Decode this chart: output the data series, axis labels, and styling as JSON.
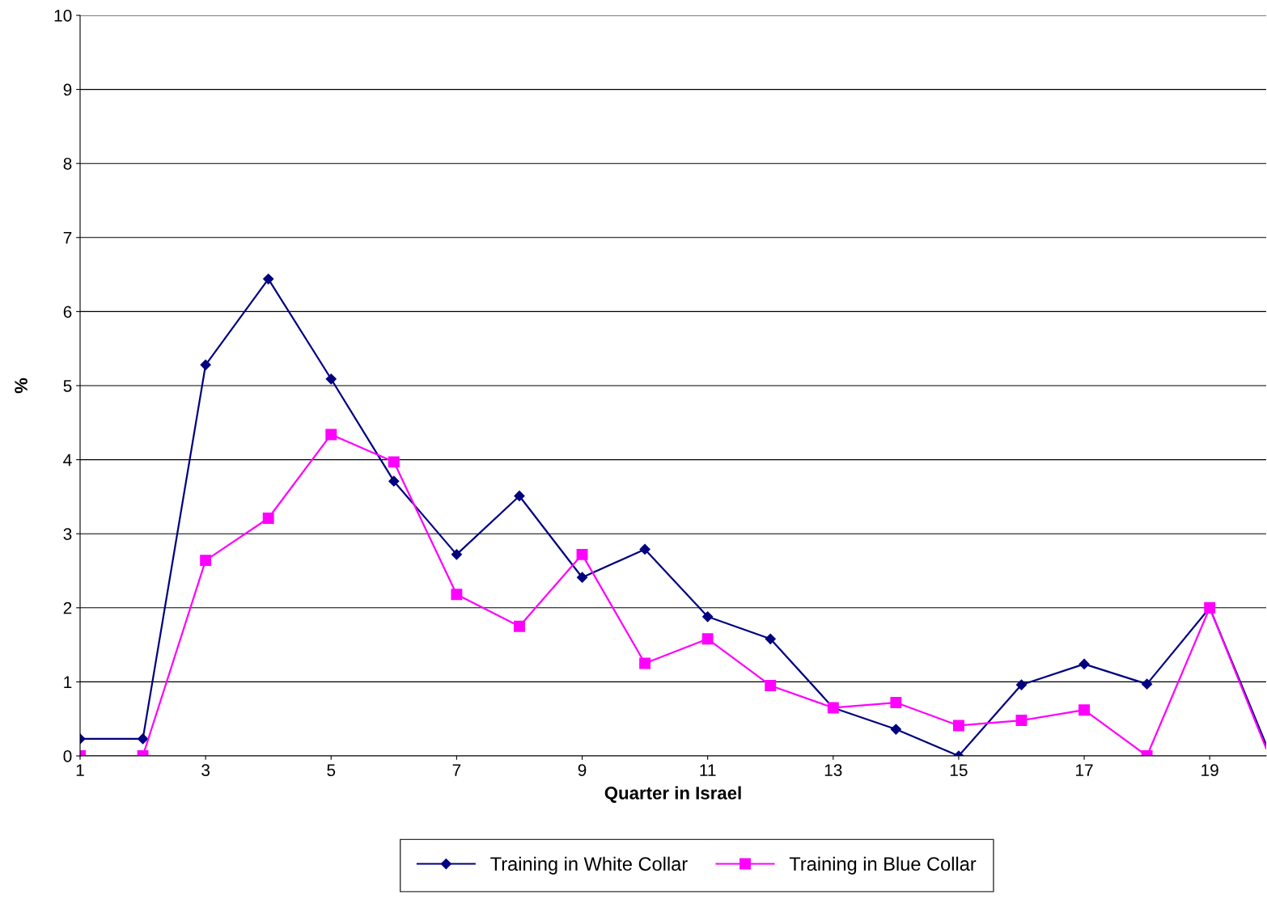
{
  "chart_data": {
    "type": "line",
    "xlabel": "Quarter in Israel",
    "ylabel": "%",
    "xlim": [
      1,
      19.9
    ],
    "xticks": [
      1,
      3,
      5,
      7,
      9,
      11,
      13,
      15,
      17,
      19
    ],
    "ylim": [
      0,
      10
    ],
    "yticks": [
      0,
      1,
      2,
      3,
      4,
      5,
      6,
      7,
      8,
      9,
      10
    ],
    "grid": "y",
    "legend": "bottom",
    "line_style": "solid",
    "series": [
      {
        "name": "Training in White Collar",
        "color": "#000080",
        "marker": "diamond",
        "x": [
          1,
          2,
          3,
          4,
          5,
          6,
          7,
          8,
          9,
          10,
          11,
          12,
          13,
          14,
          15,
          16,
          17,
          18,
          19,
          19.9
        ],
        "values": [
          0.23,
          0.23,
          5.28,
          6.44,
          5.09,
          3.71,
          2.72,
          3.51,
          2.41,
          2.79,
          1.88,
          1.58,
          0.65,
          0.36,
          0.0,
          0.96,
          1.24,
          0.97,
          2.0,
          0.15
        ]
      },
      {
        "name": "Training in Blue Collar",
        "color": "#ff00ff",
        "marker": "square",
        "x": [
          1,
          2,
          3,
          4,
          5,
          6,
          7,
          8,
          9,
          10,
          11,
          12,
          13,
          14,
          15,
          16,
          17,
          18,
          19,
          19.9
        ],
        "values": [
          0,
          0,
          2.64,
          3.21,
          4.34,
          3.97,
          2.18,
          1.75,
          2.72,
          1.25,
          1.58,
          0.95,
          0.65,
          0.72,
          0.41,
          0.48,
          0.62,
          0,
          2.0,
          0.1
        ]
      }
    ]
  }
}
